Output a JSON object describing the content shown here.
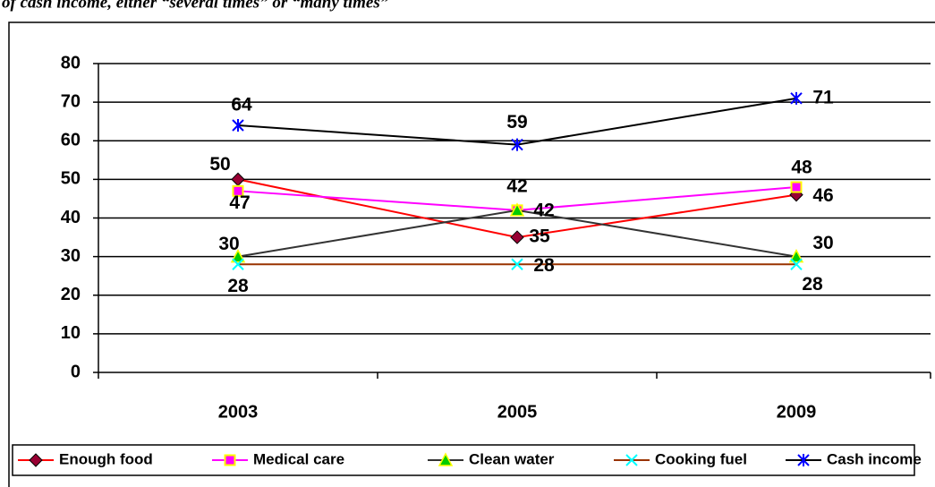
{
  "chart_data": {
    "type": "line",
    "title": "of cash income, either “several times” or “many times”",
    "categories": [
      "2003",
      "2005",
      "2009"
    ],
    "series": [
      {
        "name": "Enough food",
        "color": "#ff0000",
        "marker": "diamond",
        "marker_color": "#990033",
        "values": [
          50,
          35,
          46
        ]
      },
      {
        "name": "Medical care",
        "color": "#ff00ff",
        "marker": "square",
        "marker_color": "#ff00ff",
        "values": [
          47,
          42,
          48
        ]
      },
      {
        "name": "Clean water",
        "color": "#333333",
        "marker": "triangle",
        "marker_color": "#00cc00",
        "values": [
          30,
          42,
          30
        ]
      },
      {
        "name": "Cooking fuel",
        "color": "#993300",
        "marker": "x",
        "marker_color": "#00ffff",
        "values": [
          28,
          28,
          28
        ]
      },
      {
        "name": "Cash income",
        "color": "#000000",
        "marker": "star",
        "marker_color": "#0000ff",
        "values": [
          64,
          59,
          71
        ]
      }
    ],
    "ylim": [
      0,
      80
    ],
    "yticks": [
      0,
      10,
      20,
      30,
      40,
      50,
      60,
      70,
      80
    ],
    "grid": true,
    "legend": "bottom"
  }
}
